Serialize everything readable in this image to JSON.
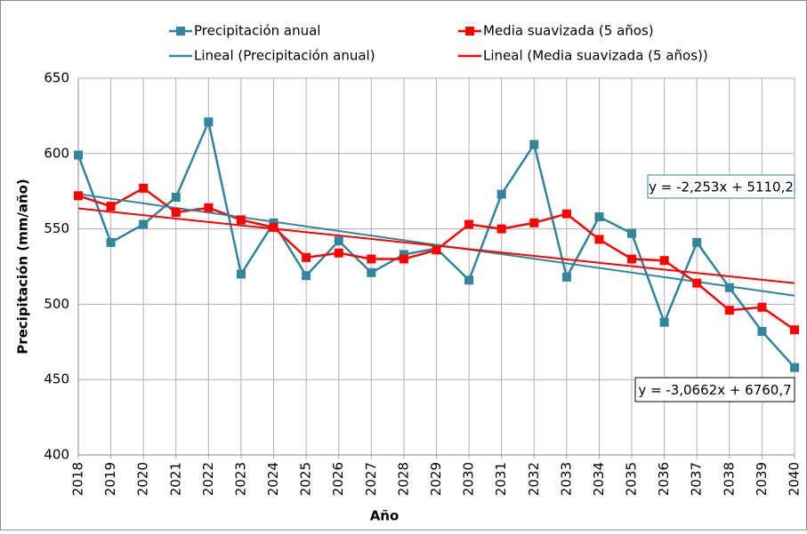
{
  "chart_data": {
    "type": "line",
    "x_label": "Año",
    "y_label": "Precipitación (mm/año)",
    "x": [
      2018,
      2019,
      2020,
      2021,
      2022,
      2023,
      2024,
      2025,
      2026,
      2027,
      2028,
      2029,
      2030,
      2031,
      2032,
      2033,
      2034,
      2035,
      2036,
      2037,
      2038,
      2039,
      2040
    ],
    "series": [
      {
        "name": "Precipitación anual",
        "color": "#31859c",
        "marker": "square",
        "values": [
          599,
          541,
          553,
          571,
          621,
          520,
          554,
          519,
          542,
          521,
          533,
          537,
          516,
          573,
          606,
          518,
          558,
          547,
          488,
          541,
          511,
          482,
          458
        ]
      },
      {
        "name": "Media suavizada (5 años)",
        "color": "#ff0000",
        "marker": "square",
        "values": [
          572,
          565,
          577,
          561,
          564,
          556,
          551,
          531,
          534,
          530,
          530,
          536,
          553,
          550,
          554,
          560,
          543,
          530,
          529,
          514,
          496,
          498,
          483
        ]
      },
      {
        "name": "Lineal (Precipitación anual)",
        "color": "#31859c",
        "x": [
          2018,
          2040
        ],
        "values": [
          573.1,
          505.7
        ]
      },
      {
        "name": "Lineal (Media suavizada (5 años))",
        "color": "#ff0000",
        "x": [
          2018,
          2040
        ],
        "values": [
          563.6,
          514.0
        ]
      }
    ],
    "annotations": [
      {
        "text": "y = -2,253x + 5110,2",
        "border": "#31859c"
      },
      {
        "text": "y = -3,0662x + 6760,7",
        "border": "#000000"
      }
    ],
    "xlim": [
      2018,
      2040
    ],
    "ylim": [
      400,
      650
    ],
    "xticks": [
      2018,
      2019,
      2020,
      2021,
      2022,
      2023,
      2024,
      2025,
      2026,
      2027,
      2028,
      2029,
      2030,
      2031,
      2032,
      2033,
      2034,
      2035,
      2036,
      2037,
      2038,
      2039,
      2040
    ],
    "yticks": [
      400,
      450,
      500,
      550,
      600,
      650
    ],
    "grid": true
  }
}
